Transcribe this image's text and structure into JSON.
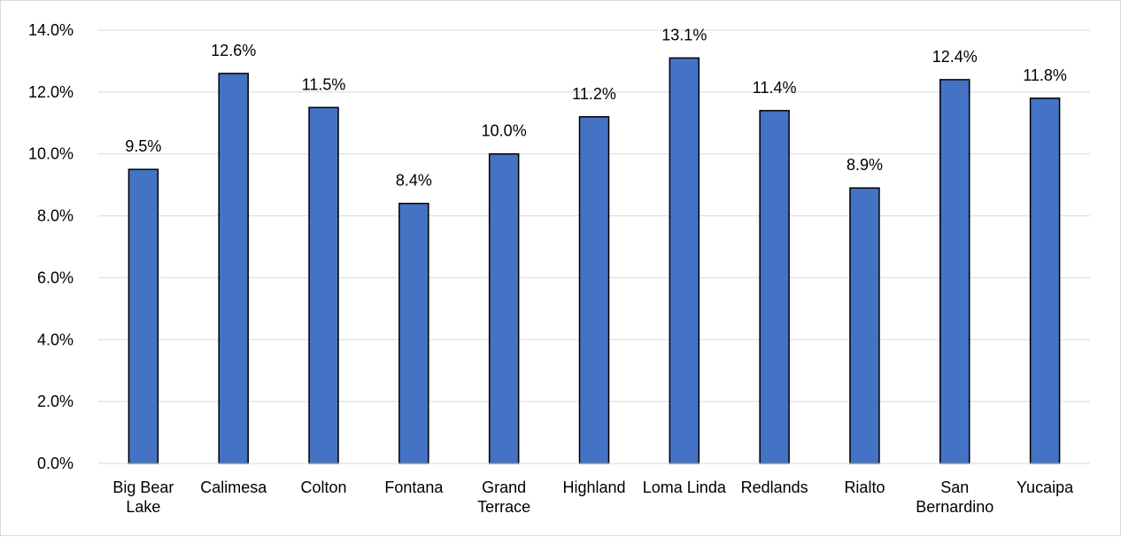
{
  "chart_data": {
    "type": "bar",
    "title": "",
    "xlabel": "",
    "ylabel": "",
    "ylim": [
      0,
      14
    ],
    "y_tick_step": 2,
    "y_tick_format": "percent_1dp",
    "grid": "horizontal",
    "legend": "none",
    "bar_color": "#4472c4",
    "bar_outline_color": "#000000",
    "categories": [
      [
        "Big Bear",
        "Lake"
      ],
      [
        "Calimesa"
      ],
      [
        "Colton"
      ],
      [
        "Fontana"
      ],
      [
        "Grand",
        "Terrace"
      ],
      [
        "Highland"
      ],
      [
        "Loma Linda"
      ],
      [
        "Redlands"
      ],
      [
        "Rialto"
      ],
      [
        "San",
        "Bernardino"
      ],
      [
        "Yucaipa"
      ]
    ],
    "values": [
      9.5,
      12.6,
      11.5,
      8.4,
      10.0,
      11.2,
      13.1,
      11.4,
      8.9,
      12.4,
      11.8
    ],
    "value_labels": [
      "9.5%",
      "12.6%",
      "11.5%",
      "8.4%",
      "10.0%",
      "11.2%",
      "13.1%",
      "11.4%",
      "8.9%",
      "12.4%",
      "11.8%"
    ],
    "y_tick_labels": [
      "0.0%",
      "2.0%",
      "4.0%",
      "6.0%",
      "8.0%",
      "10.0%",
      "12.0%",
      "14.0%"
    ]
  }
}
